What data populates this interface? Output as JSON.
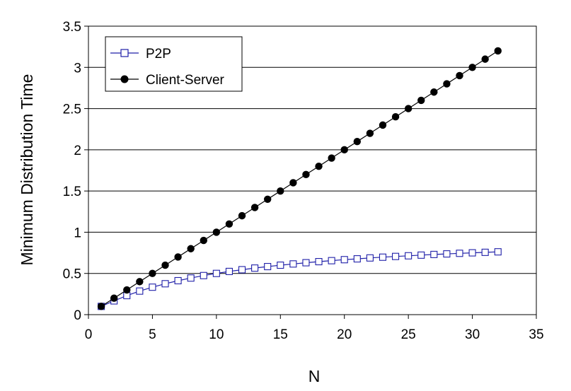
{
  "chart_data": {
    "type": "line",
    "title": "",
    "xlabel": "N",
    "ylabel": "Minimum Distribution Time",
    "xlim": [
      0,
      35
    ],
    "ylim": [
      0,
      3.5
    ],
    "x_ticks": [
      0,
      5,
      10,
      15,
      20,
      25,
      30,
      35
    ],
    "y_ticks": [
      0,
      0.5,
      1,
      1.5,
      2,
      2.5,
      3,
      3.5
    ],
    "x_tick_labels": [
      "0",
      "5",
      "10",
      "15",
      "20",
      "25",
      "30",
      "35"
    ],
    "y_tick_labels": [
      "0",
      "0.5",
      "1",
      "1.5",
      "2",
      "2.5",
      "3",
      "3.5"
    ],
    "grid": "horizontal",
    "legend_position": "top-left",
    "x": [
      1,
      2,
      3,
      4,
      5,
      6,
      7,
      8,
      9,
      10,
      11,
      12,
      13,
      14,
      15,
      16,
      17,
      18,
      19,
      20,
      21,
      22,
      23,
      24,
      25,
      26,
      27,
      28,
      29,
      30,
      31,
      32
    ],
    "series": [
      {
        "name": "P2P",
        "color": "#1f1fa8",
        "marker": "open-square",
        "values": [
          0.1,
          0.167,
          0.231,
          0.286,
          0.333,
          0.375,
          0.412,
          0.444,
          0.474,
          0.5,
          0.524,
          0.545,
          0.565,
          0.583,
          0.6,
          0.615,
          0.63,
          0.643,
          0.655,
          0.667,
          0.677,
          0.688,
          0.697,
          0.706,
          0.714,
          0.722,
          0.73,
          0.737,
          0.744,
          0.75,
          0.756,
          0.762
        ]
      },
      {
        "name": "Client-Server",
        "color": "#000000",
        "marker": "filled-circle",
        "values": [
          0.1,
          0.2,
          0.3,
          0.4,
          0.5,
          0.6,
          0.7,
          0.8,
          0.9,
          1.0,
          1.1,
          1.2,
          1.3,
          1.4,
          1.5,
          1.6,
          1.7,
          1.8,
          1.9,
          2.0,
          2.1,
          2.2,
          2.3,
          2.4,
          2.5,
          2.6,
          2.7,
          2.8,
          2.9,
          3.0,
          3.1,
          3.2
        ]
      }
    ]
  }
}
